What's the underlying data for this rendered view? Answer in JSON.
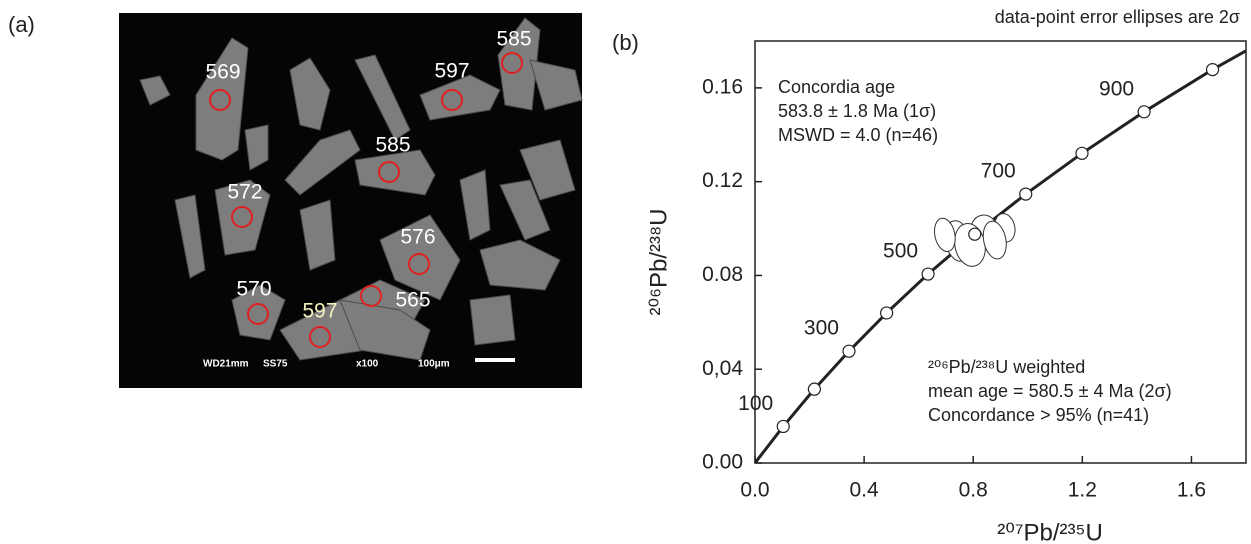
{
  "panel_a": {
    "label": "(a)",
    "spots": [
      {
        "label": "569"
      },
      {
        "label": "597"
      },
      {
        "label": "585"
      },
      {
        "label": "585"
      },
      {
        "label": "572"
      },
      {
        "label": "576"
      },
      {
        "label": "570"
      },
      {
        "label": "597"
      },
      {
        "label": "565"
      }
    ],
    "scale_bar": [
      "WD21mm",
      "SS75",
      "x100",
      "100μm"
    ]
  },
  "chart_data": {
    "type": "concordia",
    "panel_label": "(b)",
    "title": "data-point error ellipses are 2σ",
    "x_label": "²⁰⁷Pb/²³⁵U",
    "y_label": "²⁰⁶Pb/²³⁸U",
    "xlim": [
      0,
      1.8
    ],
    "ylim": [
      0,
      0.18
    ],
    "xticks": [
      {
        "value": 0,
        "label": "0.0"
      },
      0.4,
      0.8,
      1.2,
      1.6
    ],
    "yticks": [
      {
        "value": 0,
        "label": "0.00"
      },
      {
        "value": 0.04,
        "label": "0,04"
      },
      0.08,
      0.12,
      0.16
    ],
    "curve": {
      "x": [
        0,
        0.1035,
        0.2177,
        0.3445,
        0.4826,
        0.6345,
        0.8056,
        0.9925,
        1.1988,
        1.4264,
        1.6774,
        1.8
      ],
      "y": [
        0,
        0.0156,
        0.0315,
        0.0477,
        0.064,
        0.0806,
        0.0976,
        0.1147,
        0.1321,
        0.1498,
        0.1678,
        0.1758
      ]
    },
    "points": {
      "x": [
        0.1035,
        0.2177,
        0.3445,
        0.4826,
        0.6345,
        0.8056,
        0.9925,
        1.1988,
        1.4264,
        1.6774
      ],
      "y": [
        0.0156,
        0.0315,
        0.0477,
        0.064,
        0.0806,
        0.0976,
        0.1147,
        0.1321,
        0.1498,
        0.1678
      ],
      "age_labels": [
        100,
        null,
        300,
        null,
        500,
        null,
        700,
        null,
        900,
        null
      ]
    },
    "ellipses": {
      "x": [
        0.744,
        0.842,
        0.916,
        0.788,
        0.879,
        0.696
      ],
      "y": [
        0.0947,
        0.0986,
        0.1003,
        0.093,
        0.0951,
        0.0973
      ],
      "sx": [
        0.092,
        0.103,
        0.073,
        0.11,
        0.081,
        0.073
      ],
      "sy": [
        0.0073,
        0.006,
        0.0051,
        0.0077,
        0.0068,
        0.006
      ]
    },
    "annotations": [
      [
        "Concordia age",
        "583.8 ± 1.8 Ma (1σ)",
        "MSWD = 4.0 (n=46)"
      ],
      [
        "²⁰⁶Pb/²³⁸U weighted",
        "mean age = 580.5 ± 4 Ma (2σ)",
        "Concordance > 95% (n=41)"
      ]
    ]
  }
}
